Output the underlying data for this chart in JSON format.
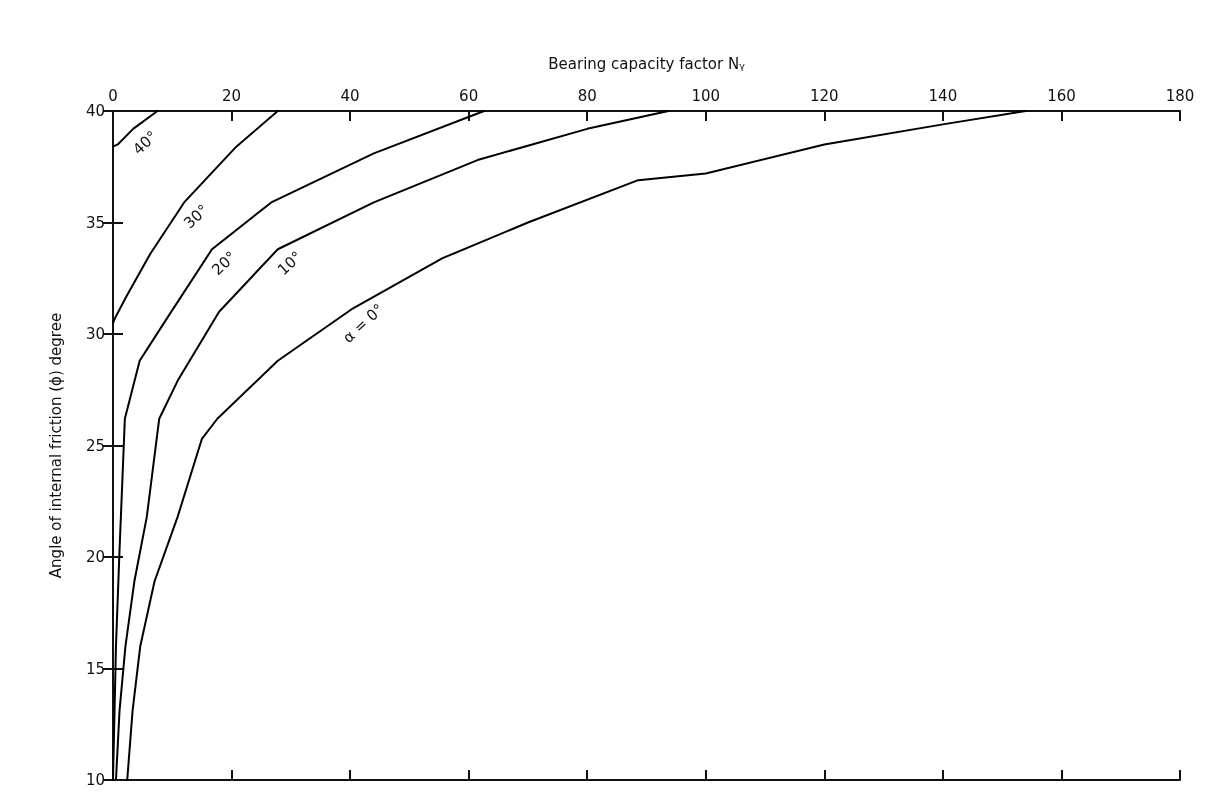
{
  "chart_data": {
    "type": "line",
    "xlabel": "Bearing capacity factor Nᵧ",
    "ylabel": "Angle of internal friction (ϕ) degree",
    "xlim": [
      0,
      180
    ],
    "xticks": [
      0,
      20,
      40,
      60,
      80,
      100,
      120,
      140,
      160,
      180
    ],
    "ylim": [
      10,
      40
    ],
    "yticks": [
      10,
      15,
      20,
      25,
      30,
      35,
      40
    ],
    "grid": false,
    "line_style": "solid",
    "series": [
      {
        "color": "#000000",
        "x": [
          2.4,
          3.3,
          4.6,
          7.0,
          10.9,
          15.0,
          17.6,
          27.8,
          40.2,
          55.6,
          70,
          88.6,
          100,
          120,
          140,
          154
        ],
        "values": [
          10,
          13.1,
          16.0,
          18.9,
          21.8,
          25.3,
          26.2,
          28.8,
          31.1,
          33.4,
          35.0,
          36.9,
          37.2,
          38.5,
          39.4,
          40
        ]
      },
      {
        "color": "#000000",
        "x": [
          0.5,
          1.1,
          2.1,
          3.6,
          5.7,
          7.8,
          10.9,
          17.9,
          27.8,
          44,
          61.5,
          80,
          93.7
        ],
        "values": [
          10,
          13.1,
          16.0,
          18.9,
          21.8,
          26.2,
          27.9,
          31.0,
          33.8,
          35.9,
          37.8,
          39.2,
          40
        ]
      },
      {
        "color": "#000000",
        "x": [
          0,
          0.5,
          1.1,
          2.0,
          4.5,
          9.1,
          16.7,
          26.7,
          44,
          62.6
        ],
        "values": [
          10,
          16.0,
          20.3,
          26.2,
          28.8,
          30.7,
          33.8,
          35.9,
          38.1,
          40
        ]
      },
      {
        "color": "#000000",
        "x": [
          0,
          0.5,
          2.3,
          6.3,
          12,
          20.8,
          27.8
        ],
        "values": [
          30.5,
          30.8,
          31.7,
          33.6,
          35.9,
          38.4,
          40
        ]
      },
      {
        "color": "#000000",
        "x": [
          0,
          0.8,
          3.4,
          7.5
        ],
        "values": [
          38.4,
          38.5,
          39.2,
          40
        ]
      }
    ],
    "annotations": [
      {
        "text": "α = 0°",
        "x": 40.2,
        "y": 31.1
      },
      {
        "text": "10°",
        "x": 27.8,
        "y": 33.8
      },
      {
        "text": "20°",
        "x": 16.7,
        "y": 33.8
      },
      {
        "text": "30°",
        "x": 12,
        "y": 35.9
      },
      {
        "text": "40°",
        "x": 3.4,
        "y": 39.2
      }
    ]
  }
}
